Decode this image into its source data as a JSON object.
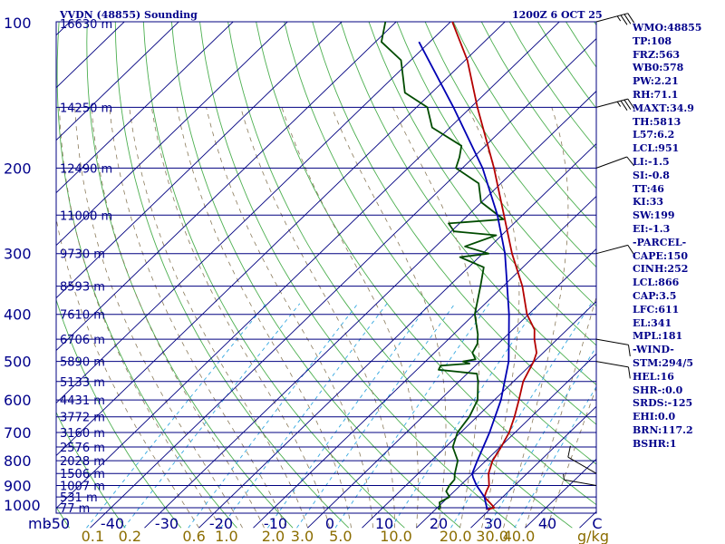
{
  "chart_data": {
    "type": "skew-t",
    "title": "VVDN (48855) Sounding",
    "valid_time": "1200Z  6 OCT 25",
    "pressure_unit": "mb",
    "mixing_ratio_unit": "g/kg",
    "pressure_levels": [
      100,
      200,
      300,
      400,
      500,
      600,
      700,
      800,
      900,
      1000
    ],
    "temperature_ticks": [
      -50,
      -40,
      -30,
      -20,
      -10,
      0,
      10,
      20,
      30,
      40
    ],
    "temperature_zero_label": "C",
    "xlim_celsius_at_surface": [
      -50,
      50
    ],
    "mixing_ratio_labels": [
      {
        "p": 0.1,
        "t": "0.1"
      },
      {
        "p": 0.2,
        "t": "0.2"
      },
      {
        "p": 0.6,
        "t": "0.6"
      },
      {
        "p": 1.0,
        "t": "1.0"
      },
      {
        "p": 2.0,
        "t": "2.0"
      },
      {
        "p": 3.0,
        "t": "3.0"
      },
      {
        "p": 5.0,
        "t": "5.0"
      },
      {
        "p": 10.0,
        "t": "10.0"
      },
      {
        "p": 20.0,
        "t": "20.0"
      },
      {
        "p": 30.0,
        "t": "30.0"
      },
      {
        "p": 40.0,
        "t": "40.0"
      }
    ],
    "height_levels": [
      {
        "p": 100,
        "label": "16630 m"
      },
      {
        "p": 150,
        "label": "14250 m"
      },
      {
        "p": 200,
        "label": "12490 m"
      },
      {
        "p": 250,
        "label": "11000 m"
      },
      {
        "p": 300,
        "label": "9730 m"
      },
      {
        "p": 350,
        "label": "8593 m"
      },
      {
        "p": 400,
        "label": "7610 m"
      },
      {
        "p": 450,
        "label": "6706 m"
      },
      {
        "p": 500,
        "label": "5890 m"
      },
      {
        "p": 550,
        "label": "5133 m"
      },
      {
        "p": 600,
        "label": "4431 m"
      },
      {
        "p": 650,
        "label": "3772 m"
      },
      {
        "p": 700,
        "label": "3160 m"
      },
      {
        "p": 750,
        "label": "2576 m"
      },
      {
        "p": 800,
        "label": "2028 m"
      },
      {
        "p": 850,
        "label": "1506 m"
      },
      {
        "p": 900,
        "label": "1007 m"
      },
      {
        "p": 950,
        "label": "531 m"
      },
      {
        "p": 1000,
        "label": "77 m"
      }
    ],
    "series": [
      {
        "name": "Temperature",
        "color": "#b40000",
        "points": [
          [
            1008,
            29.5
          ],
          [
            1000,
            30.5
          ],
          [
            975,
            28.6
          ],
          [
            950,
            26.6
          ],
          [
            925,
            25.9
          ],
          [
            900,
            25.3
          ],
          [
            850,
            22.9
          ],
          [
            800,
            21.2
          ],
          [
            750,
            20.2
          ],
          [
            700,
            18.9
          ],
          [
            650,
            16.9
          ],
          [
            600,
            14.5
          ],
          [
            550,
            11.8
          ],
          [
            500,
            9.9
          ],
          [
            480,
            8.8
          ],
          [
            450,
            5.8
          ],
          [
            430,
            4.0
          ],
          [
            400,
            -0.3
          ],
          [
            350,
            -6.5
          ],
          [
            300,
            -14.6
          ],
          [
            250,
            -23.4
          ],
          [
            200,
            -34.2
          ],
          [
            150,
            -48.8
          ],
          [
            120,
            -59.6
          ],
          [
            100,
            -69.7
          ]
        ]
      },
      {
        "name": "Dewpoint",
        "color": "#004b00",
        "points": [
          [
            1008,
            20.5
          ],
          [
            1000,
            20.5
          ],
          [
            975,
            19.4
          ],
          [
            950,
            20.2
          ],
          [
            925,
            18.5
          ],
          [
            900,
            18.0
          ],
          [
            875,
            17.8
          ],
          [
            850,
            16.7
          ],
          [
            800,
            14.8
          ],
          [
            750,
            11.3
          ],
          [
            700,
            9.4
          ],
          [
            650,
            8.6
          ],
          [
            600,
            6.9
          ],
          [
            550,
            3.5
          ],
          [
            530,
            1.8
          ],
          [
            520,
            -6.0
          ],
          [
            510,
            -6.4
          ],
          [
            505,
            -1.5
          ],
          [
            500,
            -3.1
          ],
          [
            495,
            -1.2
          ],
          [
            480,
            -3.0
          ],
          [
            460,
            -3.8
          ],
          [
            440,
            -5.5
          ],
          [
            400,
            -9.9
          ],
          [
            350,
            -14.2
          ],
          [
            320,
            -17.2
          ],
          [
            305,
            -23.5
          ],
          [
            300,
            -18.9
          ],
          [
            290,
            -24.6
          ],
          [
            275,
            -21.0
          ],
          [
            270,
            -29.5
          ],
          [
            260,
            -32.0
          ],
          [
            255,
            -22.7
          ],
          [
            235,
            -30.1
          ],
          [
            215,
            -34.1
          ],
          [
            200,
            -41.2
          ],
          [
            190,
            -42.6
          ],
          [
            180,
            -44.4
          ],
          [
            165,
            -53.3
          ],
          [
            150,
            -58.0
          ],
          [
            140,
            -64.9
          ],
          [
            120,
            -71.8
          ],
          [
            110,
            -78.9
          ],
          [
            100,
            -82.0
          ]
        ]
      },
      {
        "name": "Parcel",
        "color": "#0000b4",
        "points": [
          [
            1008,
            29.5
          ],
          [
            950,
            26.6
          ],
          [
            900,
            23.0
          ],
          [
            866,
            20.8
          ],
          [
            850,
            19.9
          ],
          [
            800,
            18.4
          ],
          [
            700,
            15.3
          ],
          [
            600,
            11.2
          ],
          [
            500,
            5.3
          ],
          [
            400,
            -3.6
          ],
          [
            300,
            -15.9
          ],
          [
            250,
            -24.6
          ],
          [
            200,
            -36.3
          ],
          [
            150,
            -53.2
          ],
          [
            110,
            -72.0
          ]
        ]
      }
    ],
    "wind_barbs": [
      {
        "p": 100,
        "dir_deg": 75,
        "kt": 35
      },
      {
        "p": 150,
        "dir_deg": 75,
        "kt": 35
      },
      {
        "p": 200,
        "dir_deg": 70,
        "kt": 10
      },
      {
        "p": 300,
        "dir_deg": 75,
        "kt": 10
      },
      {
        "p": 450,
        "dir_deg": 100,
        "kt": 10
      },
      {
        "p": 500,
        "dir_deg": 100,
        "kt": 10
      },
      {
        "p": 850,
        "dir_deg": 300,
        "kt": 10
      },
      {
        "p": 900,
        "dir_deg": 280,
        "kt": 5
      }
    ]
  },
  "indices": [
    "WMO:48855",
    "TP:108",
    "FRZ:563",
    "WB0:578",
    "PW:2.21",
    "RH:71.1",
    "MAXT:34.9",
    "TH:5813",
    "L57:6.2",
    "LCL:951",
    "LI:-1.5",
    "SI:-0.8",
    "TT:46",
    "KI:33",
    "SW:199",
    "EI:-1.3",
    "-PARCEL-",
    "CAPE:150",
    "CINH:252",
    "LCL:866",
    "CAP:3.5",
    "LFC:611",
    "EL:341",
    "MPL:181",
    "-WIND-",
    "STM:294/5",
    "HEL:16",
    "SHR-:0.0",
    "SRDS:-125",
    "EHI:0.0",
    "BRN:117.2",
    "BSHR:1"
  ]
}
